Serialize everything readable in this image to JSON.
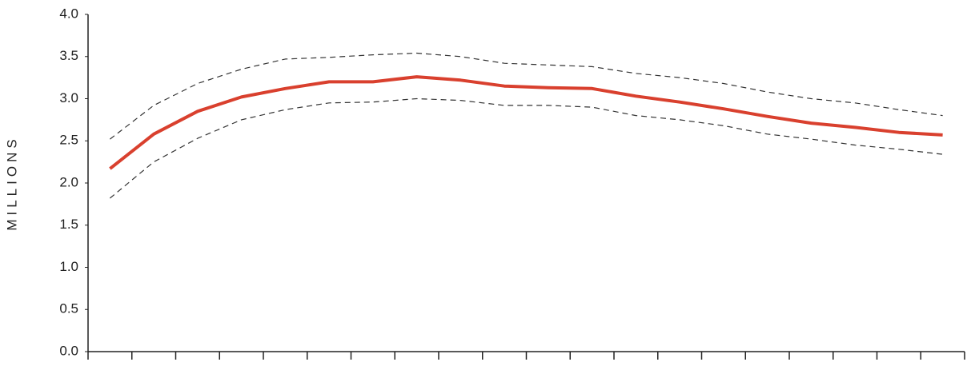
{
  "chart_data": {
    "type": "line",
    "y_label": "MILLIONS",
    "categories": [
      null,
      null,
      null,
      null,
      null,
      null,
      null,
      null,
      null,
      null,
      null,
      null,
      null,
      null,
      null,
      null,
      null,
      null,
      null,
      null
    ],
    "series": [
      {
        "color": "#d9402e",
        "dashed": false,
        "values": [
          2.17,
          2.58,
          2.85,
          3.02,
          3.12,
          3.2,
          3.2,
          3.26,
          3.22,
          3.15,
          3.13,
          3.12,
          3.03,
          2.96,
          2.88,
          2.79,
          2.71,
          2.66,
          2.6,
          2.57
        ]
      },
      {
        "color": "#333333",
        "dashed": true,
        "values": [
          2.52,
          2.92,
          3.18,
          3.35,
          3.47,
          3.49,
          3.52,
          3.54,
          3.5,
          3.42,
          3.4,
          3.38,
          3.3,
          3.25,
          3.18,
          3.08,
          3.0,
          2.95,
          2.87,
          2.8
        ]
      },
      {
        "color": "#333333",
        "dashed": true,
        "values": [
          1.82,
          2.25,
          2.53,
          2.75,
          2.87,
          2.95,
          2.96,
          3.0,
          2.98,
          2.92,
          2.92,
          2.9,
          2.8,
          2.75,
          2.68,
          2.58,
          2.52,
          2.45,
          2.4,
          2.34
        ]
      }
    ],
    "ylim": [
      0,
      4
    ],
    "yticks": [
      {
        "value": 0,
        "label": "0.0"
      },
      0.5,
      {
        "value": 1,
        "label": "1.0"
      },
      1.5,
      {
        "value": 2,
        "label": "2.0"
      },
      2.5,
      {
        "value": 3,
        "label": "3.0"
      },
      3.5,
      {
        "value": 4,
        "label": "4.0"
      }
    ],
    "grid": false
  }
}
